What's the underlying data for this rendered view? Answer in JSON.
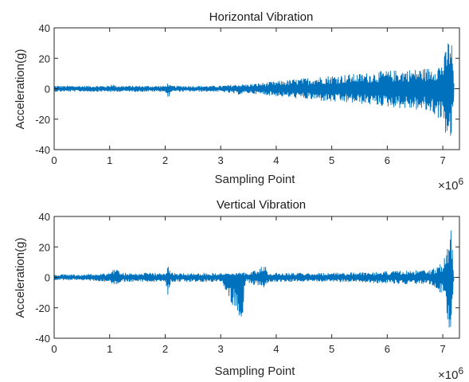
{
  "chart_data": [
    {
      "type": "line",
      "title": "Horizontal Vibration",
      "xlabel": "Sampling Point",
      "ylabel": "Acceleration(g)",
      "xlim": [
        0,
        7.3
      ],
      "ylim": [
        -40,
        40
      ],
      "x_ticks": [
        0,
        1,
        2,
        3,
        4,
        5,
        6,
        7
      ],
      "y_ticks": [
        -40,
        -20,
        0,
        20,
        40
      ],
      "x_exponent_label": "×10",
      "x_exponent_power": "6",
      "color": "#0072BD",
      "grid": false,
      "envelope": {
        "x": [
          0,
          0.5,
          1.0,
          1.05,
          1.1,
          1.5,
          2.0,
          2.05,
          2.1,
          2.5,
          3.0,
          3.3,
          3.5,
          4.0,
          4.5,
          5.0,
          5.5,
          6.0,
          6.5,
          6.8,
          7.0,
          7.05,
          7.1,
          7.15,
          7.2
        ],
        "upper": [
          2,
          2,
          2,
          4,
          2,
          2,
          2,
          4,
          2,
          2,
          2,
          3,
          3,
          5,
          7,
          9,
          10,
          12,
          13,
          14,
          18,
          25,
          33,
          38,
          5
        ],
        "lower": [
          -2,
          -2,
          -2,
          -3,
          -2,
          -2,
          -2,
          -8,
          -2,
          -2,
          -2,
          -4,
          -3,
          -5,
          -7,
          -9,
          -10,
          -12,
          -14,
          -16,
          -22,
          -30,
          -36,
          -38,
          -5
        ]
      }
    },
    {
      "type": "line",
      "title": "Vertical Vibration",
      "xlabel": "Sampling Point",
      "ylabel": "Acceleration(g)",
      "xlim": [
        0,
        7.3
      ],
      "ylim": [
        -40,
        40
      ],
      "x_ticks": [
        0,
        1,
        2,
        3,
        4,
        5,
        6,
        7
      ],
      "y_ticks": [
        -40,
        -20,
        0,
        20,
        40
      ],
      "x_exponent_label": "×10",
      "x_exponent_power": "6",
      "color": "#0072BD",
      "grid": false,
      "envelope": {
        "x": [
          0,
          0.5,
          1.0,
          1.1,
          1.2,
          1.5,
          2.0,
          2.05,
          2.1,
          2.5,
          3.0,
          3.35,
          3.4,
          3.45,
          3.8,
          3.85,
          4.0,
          5.0,
          6.0,
          6.8,
          7.0,
          7.05,
          7.1,
          7.15,
          7.2
        ],
        "upper": [
          2,
          2,
          3,
          7,
          3,
          3,
          3,
          9,
          3,
          3,
          3,
          3,
          4,
          3,
          8,
          3,
          3,
          3,
          4,
          5,
          10,
          15,
          25,
          38,
          0
        ],
        "lower": [
          -2,
          -2,
          -3,
          -6,
          -3,
          -3,
          -3,
          -12,
          -3,
          -3,
          -3,
          -28,
          -26,
          -3,
          -8,
          -3,
          -3,
          -3,
          -4,
          -5,
          -12,
          -20,
          -32,
          -38,
          0
        ]
      }
    }
  ]
}
